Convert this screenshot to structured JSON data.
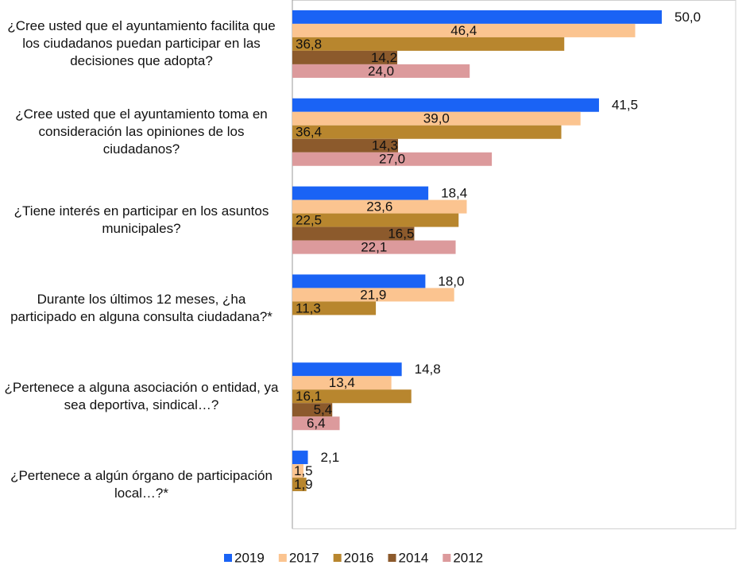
{
  "chart_data": {
    "type": "bar",
    "orientation": "horizontal",
    "categories": [
      "¿Cree usted que el ayuntamiento facilita que los ciudadanos puedan participar en las decisiones que adopta?",
      "¿Cree usted que el ayuntamiento toma en consideración las opiniones de los ciudadanos?",
      "¿Tiene interés en participar en los asuntos municipales?",
      "Durante los últimos 12 meses, ¿ha participado en alguna consulta ciudadana?*",
      "¿Pertenece a alguna asociación o entidad, ya sea deportiva, sindical…?",
      "¿Pertenece a algún órgano de participación local…?*"
    ],
    "series": [
      {
        "name": "2019",
        "color": "#1a63f5",
        "values": [
          50.0,
          41.5,
          18.4,
          18.0,
          14.8,
          2.1
        ],
        "value_labels": [
          "50,0",
          "41,5",
          "18,4",
          "18,0",
          "14,8",
          "2,1"
        ]
      },
      {
        "name": "2017",
        "color": "#fbc490",
        "values": [
          46.4,
          39.0,
          23.6,
          21.9,
          13.4,
          1.5
        ],
        "value_labels": [
          "46,4",
          "39,0",
          "23,6",
          "21,9",
          "13,4",
          "1,5"
        ]
      },
      {
        "name": "2016",
        "color": "#b8862e",
        "values": [
          36.8,
          36.4,
          22.5,
          11.3,
          16.1,
          1.9
        ],
        "value_labels": [
          "36,8",
          "36,4",
          "22,5",
          "11,3",
          "16,1",
          "1,9"
        ]
      },
      {
        "name": "2014",
        "color": "#8c5a2c",
        "values": [
          14.2,
          14.3,
          16.5,
          null,
          5.4,
          null
        ],
        "value_labels": [
          "14,2",
          "14,3",
          "16,5",
          null,
          "5,4",
          null
        ]
      },
      {
        "name": "2012",
        "color": "#dc9a9c",
        "values": [
          24.0,
          27.0,
          22.1,
          null,
          6.4,
          null
        ],
        "value_labels": [
          "24,0",
          "27,0",
          "22,1",
          null,
          "6,4",
          null
        ]
      }
    ],
    "xlim": [
      0,
      60
    ],
    "legend": "bottom"
  }
}
